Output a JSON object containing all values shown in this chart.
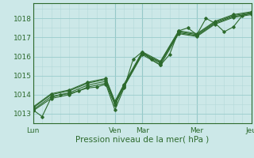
{
  "title": "",
  "xlabel": "Pression niveau de la mer( hPa )",
  "bg_color": "#cce8e8",
  "plot_bg_color": "#cce8e8",
  "grid_major_color": "#99cccc",
  "grid_minor_color": "#b3d9d9",
  "line_color": "#2d6a2d",
  "marker_color": "#2d6a2d",
  "ylim": [
    1012.5,
    1018.8
  ],
  "xlim": [
    0,
    96
  ],
  "yticks": [
    1013,
    1014,
    1015,
    1016,
    1017,
    1018
  ],
  "xtick_positions": [
    0,
    36,
    48,
    72,
    96
  ],
  "xtick_labels": [
    "Lun",
    "Ven",
    "Mar",
    "Mer",
    "Jeu"
  ],
  "series": [
    [
      0,
      1013.2,
      4,
      1012.85,
      8,
      1013.85,
      12,
      1014.0,
      16,
      1014.05,
      20,
      1014.2,
      24,
      1014.35,
      28,
      1014.4,
      32,
      1014.55,
      36,
      1013.2,
      40,
      1014.35,
      44,
      1015.85,
      48,
      1016.25,
      52,
      1015.85,
      56,
      1015.55,
      60,
      1016.1,
      64,
      1017.35,
      68,
      1017.5,
      72,
      1017.15,
      76,
      1018.0,
      80,
      1017.75,
      84,
      1017.3,
      88,
      1017.55,
      92,
      1018.15,
      96,
      1018.3
    ],
    [
      0,
      1013.2,
      8,
      1013.9,
      16,
      1014.1,
      24,
      1014.5,
      32,
      1014.7,
      36,
      1013.55,
      40,
      1014.45,
      48,
      1016.15,
      56,
      1015.65,
      64,
      1017.25,
      72,
      1017.1,
      80,
      1017.75,
      88,
      1018.1,
      96,
      1018.25
    ],
    [
      0,
      1013.3,
      8,
      1014.0,
      16,
      1014.2,
      24,
      1014.6,
      32,
      1014.8,
      36,
      1013.6,
      40,
      1014.5,
      48,
      1016.2,
      56,
      1015.7,
      64,
      1017.3,
      72,
      1017.15,
      80,
      1017.8,
      88,
      1018.15,
      96,
      1018.3
    ],
    [
      0,
      1013.35,
      8,
      1014.05,
      16,
      1014.25,
      24,
      1014.65,
      32,
      1014.85,
      36,
      1013.65,
      40,
      1014.55,
      48,
      1016.25,
      56,
      1015.75,
      64,
      1017.35,
      72,
      1017.2,
      80,
      1017.85,
      88,
      1018.2,
      96,
      1018.35
    ],
    [
      0,
      1013.15,
      8,
      1013.8,
      16,
      1014.0,
      24,
      1014.4,
      32,
      1014.6,
      36,
      1013.45,
      40,
      1014.4,
      48,
      1016.1,
      56,
      1015.55,
      64,
      1017.2,
      72,
      1017.05,
      80,
      1017.7,
      88,
      1018.05,
      96,
      1018.2
    ]
  ]
}
